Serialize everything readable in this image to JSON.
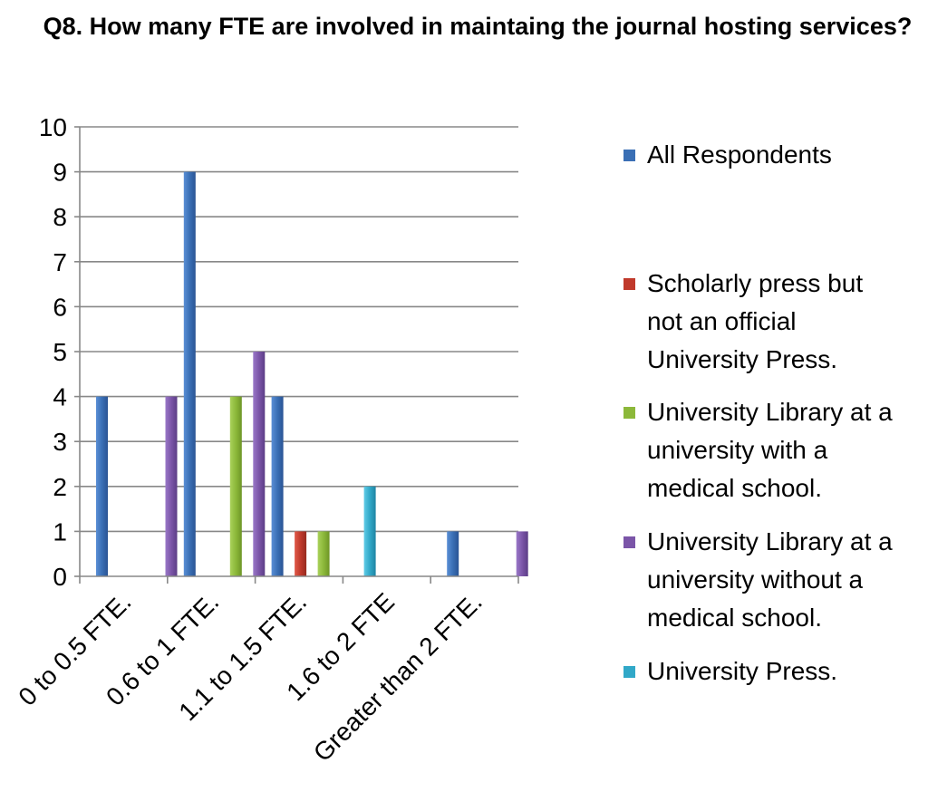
{
  "chart_data": {
    "type": "bar",
    "title": "Q8. How many FTE are involved in maintaing the journal hosting services?",
    "categories": [
      "0 to 0.5 FTE.",
      "0.6 to 1 FTE.",
      "1.1 to 1.5 FTE.",
      "1.6 to 2 FTE",
      "Greater than 2 FTE."
    ],
    "ylim": [
      0,
      10
    ],
    "yticks": [
      0,
      1,
      2,
      3,
      4,
      5,
      6,
      7,
      8,
      9,
      10
    ],
    "grid": true,
    "legend_position": "right",
    "series": [
      {
        "name": "All Respondents",
        "color": "#3a6fb5",
        "values": [
          4,
          9,
          4,
          0,
          1
        ]
      },
      {
        "name": "Scholarly press but\nnot an official\nUniversity Press.",
        "color": "#c0392b",
        "values": [
          0,
          0,
          1,
          0,
          0
        ]
      },
      {
        "name": "University Library at a\nuniversity with a\nmedical school.",
        "color": "#8cb83a",
        "values": [
          0,
          4,
          1,
          0,
          0
        ]
      },
      {
        "name": "University Library at a\nuniversity without a\nmedical school.",
        "color": "#7b55a8",
        "values": [
          4,
          5,
          0,
          0,
          1
        ]
      },
      {
        "name": "University Press.",
        "color": "#31a8c8",
        "values": [
          0,
          0,
          2,
          0,
          0
        ]
      }
    ]
  }
}
